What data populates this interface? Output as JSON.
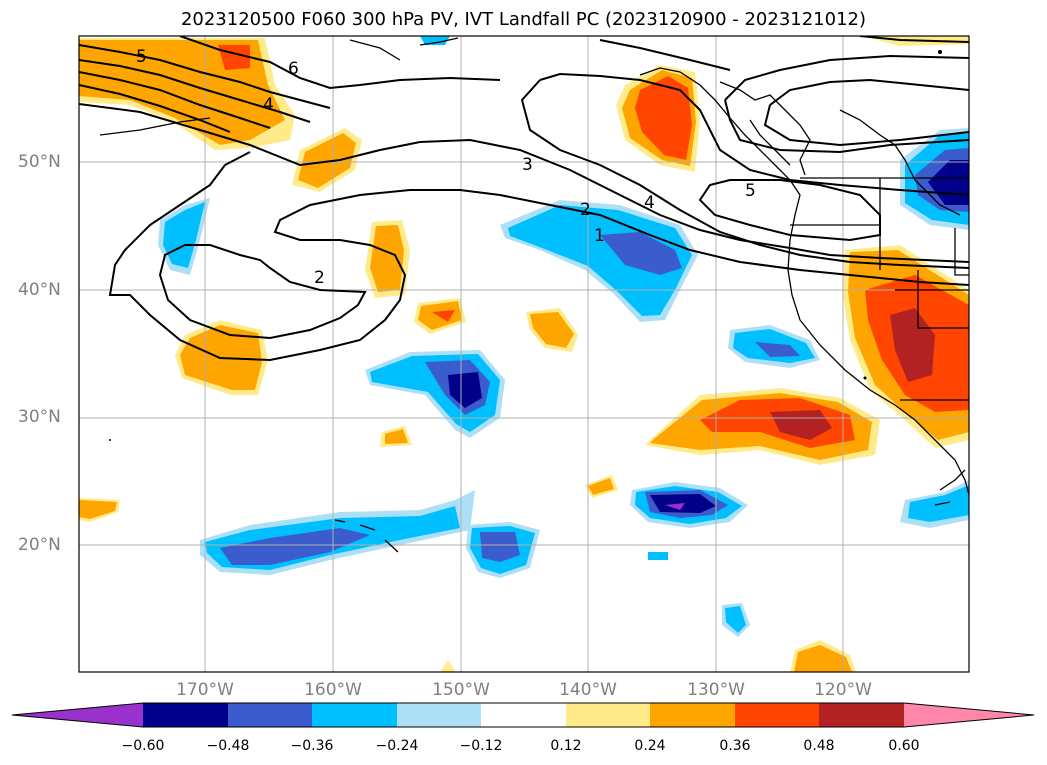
{
  "title": "2023120500 F060 300 hPa PV, IVT Landfall PC (2023120900 - 2023121012)",
  "map": {
    "lat_labels": [
      "50°N",
      "40°N",
      "30°N",
      "20°N"
    ],
    "lon_labels": [
      "170°W",
      "160°W",
      "150°W",
      "140°W",
      "130°W",
      "120°W"
    ],
    "contour_labels": [
      "5",
      "6",
      "4",
      "3",
      "2",
      "4",
      "1",
      "5",
      "2"
    ]
  },
  "colorbar": {
    "levels": [
      "−0.60",
      "−0.48",
      "−0.36",
      "−0.24",
      "−0.12",
      "0.12",
      "0.24",
      "0.36",
      "0.48",
      "0.60"
    ],
    "colors": {
      "lt_neg_060": "#9932cc",
      "neg_060_048": "#00008b",
      "neg_048_036": "#3a5ccc",
      "neg_036_024": "#00bfff",
      "neg_024_012": "#ade0f7",
      "neutral": "#ffffff",
      "pos_012_024": "#ffeb8a",
      "pos_024_036": "#ffa500",
      "pos_036_048": "#ff4500",
      "pos_048_060": "#b22222",
      "gt_060": "#ff88aa"
    }
  }
}
